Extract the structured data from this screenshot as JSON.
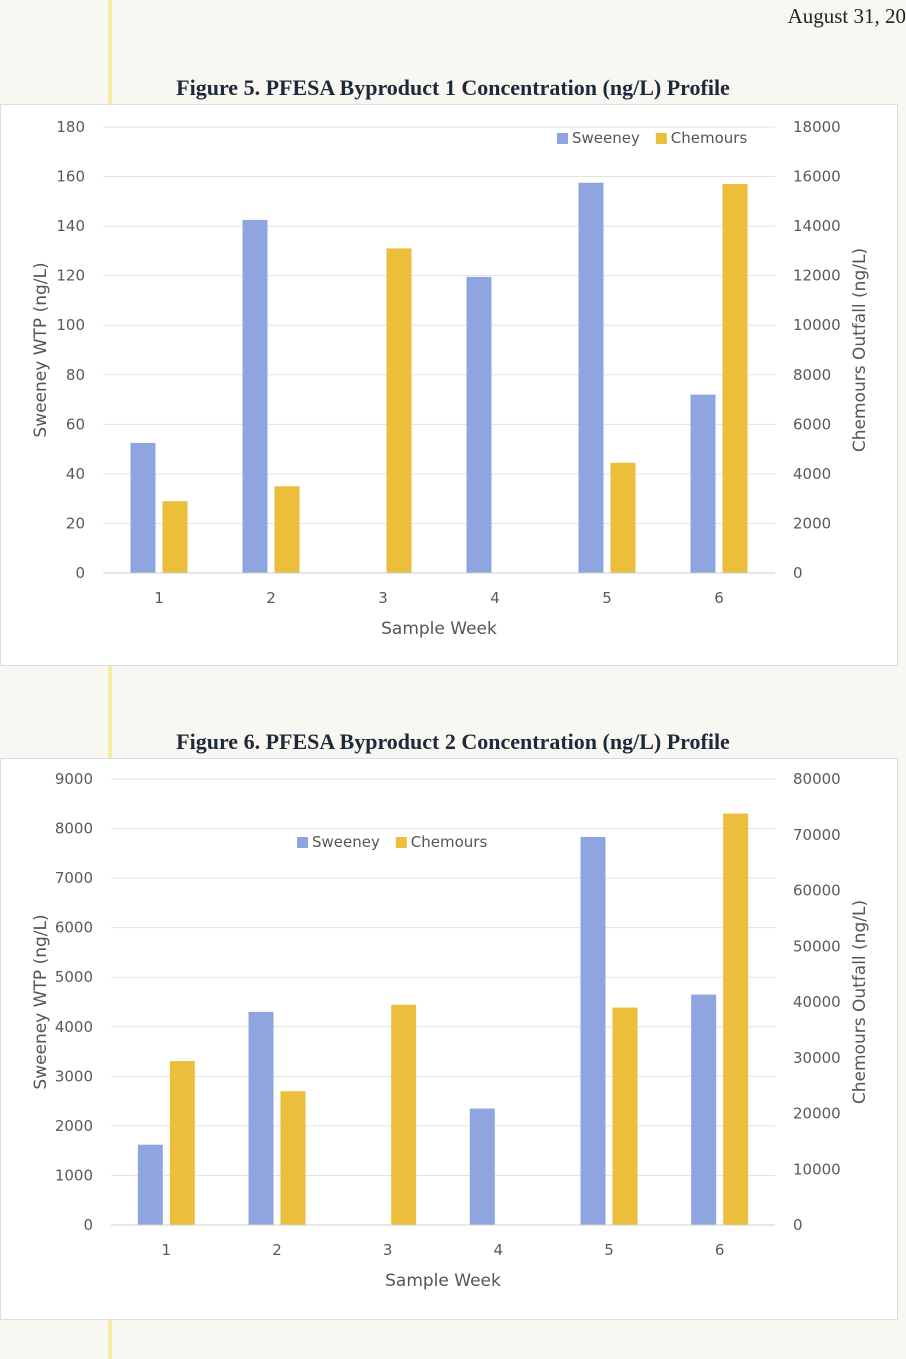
{
  "header": {
    "date": "August 31, 20"
  },
  "colors": {
    "sweeney": "#8fa5e0",
    "chemours": "#ebbe3b",
    "grid": "#e3e3e3"
  },
  "chart_data": [
    {
      "type": "bar",
      "title": "Figure 5.  PFESA Byproduct 1 Concentration (ng/L) Profile",
      "xlabel": "Sample Week",
      "ylabel": "Sweeney WTP (ng/L)",
      "y2label": "Chemours Outfall (ng/L)",
      "categories": [
        "1",
        "2",
        "3",
        "4",
        "5",
        "6"
      ],
      "ylim": [
        0,
        180
      ],
      "y2lim": [
        0,
        18000
      ],
      "yticks": [
        "0",
        "20",
        "40",
        "60",
        "80",
        "100",
        "120",
        "140",
        "160",
        "180"
      ],
      "y2ticks": [
        "0",
        "2000",
        "4000",
        "6000",
        "8000",
        "10000",
        "12000",
        "14000",
        "16000",
        "18000"
      ],
      "legend_position": "top-right",
      "series": [
        {
          "name": "Sweeney",
          "axis": "left",
          "values": [
            52.5,
            142.5,
            null,
            119.5,
            157.5,
            72
          ]
        },
        {
          "name": "Chemours",
          "axis": "right",
          "values": [
            2900,
            3500,
            13100,
            null,
            4450,
            15700
          ]
        }
      ]
    },
    {
      "type": "bar",
      "title": "Figure 6.  PFESA Byproduct 2 Concentration (ng/L) Profile",
      "xlabel": "Sample Week",
      "ylabel": "Sweeney WTP (ng/L)",
      "y2label": "Chemours Outfall (ng/L)",
      "categories": [
        "1",
        "2",
        "3",
        "4",
        "5",
        "6"
      ],
      "ylim": [
        0,
        9000
      ],
      "y2lim": [
        0,
        80000
      ],
      "yticks": [
        "0",
        "1000",
        "2000",
        "3000",
        "4000",
        "5000",
        "6000",
        "7000",
        "8000",
        "9000"
      ],
      "y2ticks": [
        "0",
        "10000",
        "20000",
        "30000",
        "40000",
        "50000",
        "60000",
        "70000",
        "80000"
      ],
      "legend_position": "top-center",
      "series": [
        {
          "name": "Sweeney",
          "axis": "left",
          "values": [
            1620,
            4300,
            null,
            2350,
            7830,
            4650
          ]
        },
        {
          "name": "Chemours",
          "axis": "right",
          "values": [
            29400,
            24000,
            39500,
            null,
            39000,
            73800
          ]
        }
      ]
    }
  ]
}
